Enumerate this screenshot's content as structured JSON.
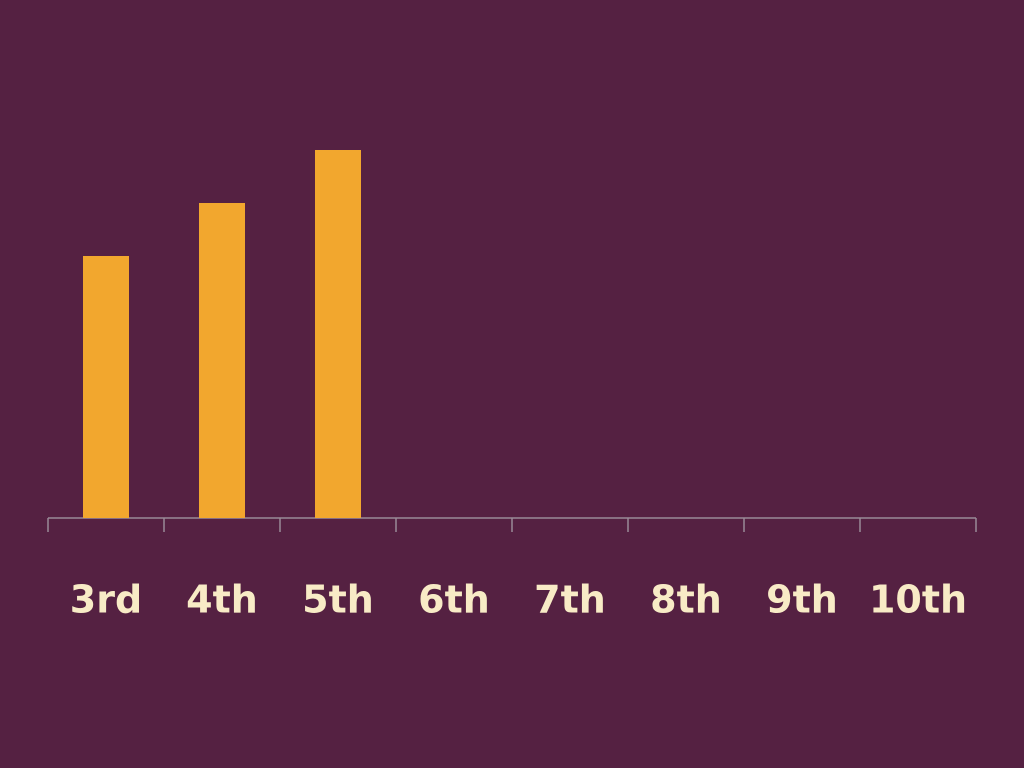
{
  "chart_data": {
    "type": "bar",
    "categories": [
      "3rd",
      "4th",
      "5th",
      "6th",
      "7th",
      "8th",
      "9th",
      "10th"
    ],
    "values": [
      262,
      315,
      368,
      null,
      null,
      null,
      null,
      null
    ],
    "color": "#f2a72e",
    "ylim": [
      0,
      400
    ]
  }
}
